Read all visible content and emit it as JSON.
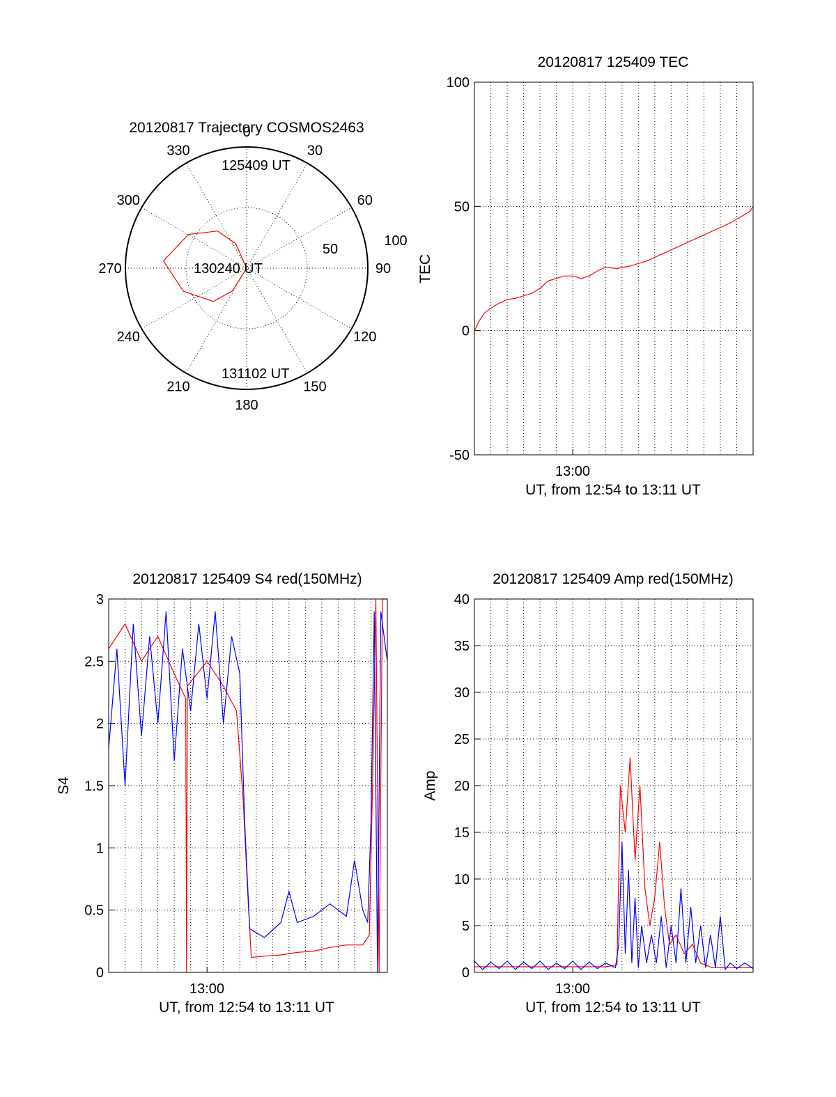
{
  "charts": [
    {
      "id": "polar",
      "type": "polar",
      "title": "20120817 Trajectory COSMOS2463",
      "azimuth_labels": [
        "0",
        "30",
        "60",
        "90",
        "120",
        "150",
        "180",
        "210",
        "240",
        "270",
        "300",
        "330"
      ],
      "radial_labels": [
        "50",
        "100"
      ],
      "series": [
        {
          "color": "#ff0000",
          "points": [
            [
              344,
              90
            ],
            [
              336,
              70
            ],
            [
              322,
              55
            ],
            [
              300,
              40
            ],
            [
              275,
              28
            ],
            [
              250,
              40
            ],
            [
              225,
              55
            ],
            [
              212,
              70
            ],
            [
              205,
              90
            ]
          ]
        }
      ],
      "annotations": [
        {
          "text": "125409 UT"
        },
        {
          "text": "130240 UT"
        },
        {
          "text": "131102 UT"
        }
      ]
    },
    {
      "id": "tec",
      "type": "line",
      "title": "20120817 125409 TEC",
      "ylabel": "TEC",
      "xlabel": "UT, from 12:54 to 13:11 UT",
      "xtick_label": "13:00",
      "yticks": [
        "100",
        "50",
        "0",
        "-50"
      ],
      "ylim": [
        -50,
        100
      ],
      "series": [
        {
          "color": "#ff0000",
          "points": [
            [
              0,
              0
            ],
            [
              0.3,
              4
            ],
            [
              0.6,
              7
            ],
            [
              1,
              9
            ],
            [
              1.5,
              11
            ],
            [
              2,
              12.5
            ],
            [
              2.5,
              13
            ],
            [
              3,
              14
            ],
            [
              3.5,
              15
            ],
            [
              4,
              17
            ],
            [
              4.5,
              20
            ],
            [
              5,
              21
            ],
            [
              5.5,
              22
            ],
            [
              6,
              22
            ],
            [
              6.5,
              21
            ],
            [
              7,
              22
            ],
            [
              7.5,
              24
            ],
            [
              8,
              25.5
            ],
            [
              8.7,
              25
            ],
            [
              9.5,
              26
            ],
            [
              10.5,
              28
            ],
            [
              11.5,
              31
            ],
            [
              12.5,
              34
            ],
            [
              13.5,
              37
            ],
            [
              14.5,
              40
            ],
            [
              15.5,
              43
            ],
            [
              16.3,
              46
            ],
            [
              16.8,
              48
            ],
            [
              17,
              50
            ]
          ]
        }
      ]
    },
    {
      "id": "s4",
      "type": "line",
      "title": "20120817 125409 S4 red(150MHz)",
      "ylabel": "S4",
      "xlabel": "UT, from 12:54 to 13:11 UT",
      "xtick_label": "13:00",
      "yticks": [
        "3",
        "2.5",
        "2",
        "1.5",
        "1",
        "0.5",
        "0"
      ],
      "ylim": [
        0,
        3
      ],
      "series": [
        {
          "color": "#ff0000",
          "points": [
            [
              0,
              2.6
            ],
            [
              1,
              2.8
            ],
            [
              2,
              2.5
            ],
            [
              3,
              2.7
            ],
            [
              4,
              2.4
            ],
            [
              4.7,
              2.2
            ],
            [
              4.75,
              0
            ],
            [
              4.8,
              2.3
            ],
            [
              6,
              2.5
            ],
            [
              7,
              2.3
            ],
            [
              7.8,
              2.1
            ],
            [
              8.2,
              1.4
            ],
            [
              8.5,
              0.6
            ],
            [
              8.7,
              0.12
            ],
            [
              9.5,
              0.13
            ],
            [
              10.5,
              0.14
            ],
            [
              11.5,
              0.16
            ],
            [
              12.5,
              0.17
            ],
            [
              13.5,
              0.2
            ],
            [
              14.5,
              0.22
            ],
            [
              15.5,
              0.22
            ],
            [
              15.9,
              0.3
            ],
            [
              16.1,
              1.5
            ],
            [
              16.3,
              3
            ],
            [
              16.5,
              0
            ],
            [
              16.7,
              3
            ],
            [
              17,
              3
            ]
          ]
        },
        {
          "color": "#0000ff",
          "points": [
            [
              0,
              1.8
            ],
            [
              0.5,
              2.6
            ],
            [
              1,
              1.5
            ],
            [
              1.5,
              2.8
            ],
            [
              2,
              1.9
            ],
            [
              2.5,
              2.7
            ],
            [
              3,
              2.0
            ],
            [
              3.5,
              2.9
            ],
            [
              4,
              1.7
            ],
            [
              4.5,
              2.6
            ],
            [
              5,
              2.1
            ],
            [
              5.5,
              2.8
            ],
            [
              6,
              2.2
            ],
            [
              6.5,
              2.9
            ],
            [
              7,
              2.0
            ],
            [
              7.5,
              2.7
            ],
            [
              8,
              2.4
            ],
            [
              8.3,
              1.2
            ],
            [
              8.6,
              0.35
            ],
            [
              9.5,
              0.28
            ],
            [
              10.5,
              0.4
            ],
            [
              11,
              0.65
            ],
            [
              11.5,
              0.4
            ],
            [
              12.5,
              0.45
            ],
            [
              13.5,
              0.55
            ],
            [
              14.5,
              0.45
            ],
            [
              15,
              0.9
            ],
            [
              15.5,
              0.5
            ],
            [
              15.8,
              0.4
            ],
            [
              16,
              1.2
            ],
            [
              16.2,
              2.9
            ],
            [
              16.4,
              0
            ],
            [
              16.6,
              2.9
            ],
            [
              17,
              2.5
            ]
          ]
        }
      ]
    },
    {
      "id": "amp",
      "type": "line",
      "title": "20120817 125409 Amp red(150MHz)",
      "ylabel": "Amp",
      "xlabel": "UT, from 12:54 to 13:11 UT",
      "xtick_label": "13:00",
      "yticks": [
        "40",
        "35",
        "30",
        "25",
        "20",
        "15",
        "10",
        "5",
        "0"
      ],
      "ylim": [
        0,
        40
      ],
      "series": [
        {
          "color": "#ff0000",
          "points": [
            [
              0,
              0.6
            ],
            [
              8,
              0.6
            ],
            [
              8.7,
              0.8
            ],
            [
              8.9,
              20
            ],
            [
              9.2,
              15
            ],
            [
              9.5,
              23
            ],
            [
              9.8,
              12
            ],
            [
              10.1,
              20
            ],
            [
              10.4,
              9
            ],
            [
              10.7,
              5
            ],
            [
              11,
              8
            ],
            [
              11.3,
              14
            ],
            [
              11.6,
              7
            ],
            [
              11.9,
              3
            ],
            [
              12.3,
              4
            ],
            [
              12.8,
              2
            ],
            [
              13.3,
              3
            ],
            [
              13.8,
              1
            ],
            [
              14.5,
              0.5
            ],
            [
              17,
              0.5
            ]
          ]
        },
        {
          "color": "#0000ff",
          "points": [
            [
              0,
              1.2
            ],
            [
              0.5,
              0.3
            ],
            [
              1,
              1.1
            ],
            [
              1.5,
              0.4
            ],
            [
              2,
              1.2
            ],
            [
              2.5,
              0.3
            ],
            [
              3,
              1.1
            ],
            [
              3.5,
              0.4
            ],
            [
              4,
              1.2
            ],
            [
              4.5,
              0.3
            ],
            [
              5,
              1.0
            ],
            [
              5.5,
              0.4
            ],
            [
              6,
              1.2
            ],
            [
              6.5,
              0.3
            ],
            [
              7,
              1.1
            ],
            [
              7.5,
              0.4
            ],
            [
              8,
              1.0
            ],
            [
              8.6,
              0.5
            ],
            [
              8.8,
              3
            ],
            [
              9,
              14
            ],
            [
              9.2,
              2
            ],
            [
              9.4,
              11
            ],
            [
              9.6,
              1
            ],
            [
              9.8,
              8
            ],
            [
              10,
              0.5
            ],
            [
              10.2,
              5
            ],
            [
              10.5,
              1
            ],
            [
              10.8,
              4
            ],
            [
              11.1,
              1
            ],
            [
              11.4,
              6
            ],
            [
              11.7,
              0.5
            ],
            [
              12,
              5
            ],
            [
              12.3,
              1
            ],
            [
              12.6,
              9
            ],
            [
              12.9,
              1
            ],
            [
              13.2,
              7
            ],
            [
              13.5,
              1
            ],
            [
              13.8,
              5
            ],
            [
              14.1,
              0.5
            ],
            [
              14.4,
              4
            ],
            [
              14.7,
              0.5
            ],
            [
              15,
              6
            ],
            [
              15.3,
              0.3
            ],
            [
              15.6,
              1
            ],
            [
              16,
              0.4
            ],
            [
              16.5,
              1
            ],
            [
              17,
              0.4
            ]
          ]
        }
      ]
    }
  ]
}
